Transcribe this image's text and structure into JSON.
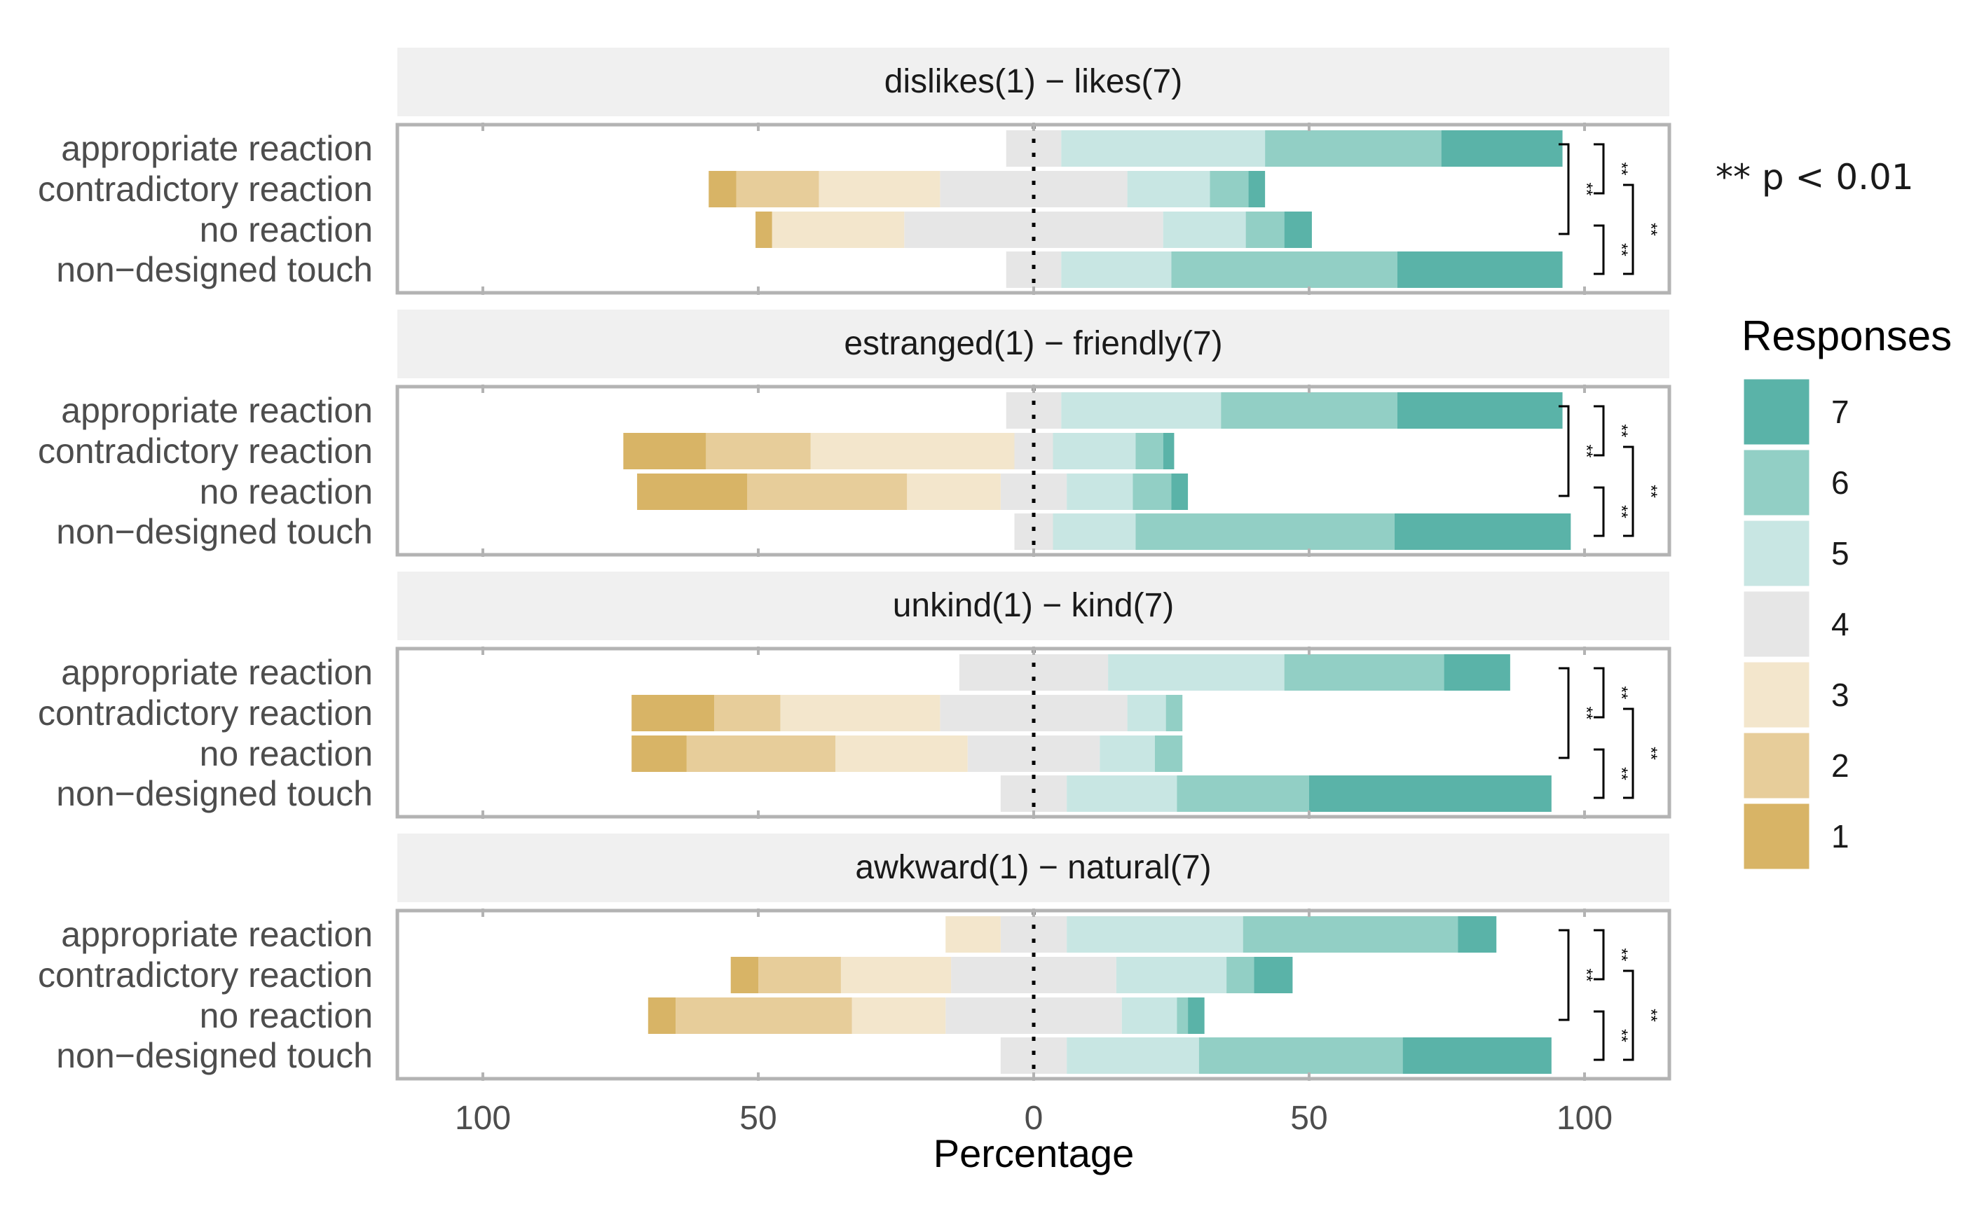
{
  "chart_data": {
    "type": "bar",
    "subtype": "diverging-stacked",
    "xlabel": "Percentage",
    "xlim": [
      -100,
      100
    ],
    "x_ticks": [
      -100,
      -50,
      0,
      50,
      100
    ],
    "x_tick_labels": [
      "100",
      "50",
      "0",
      "50",
      "100"
    ],
    "categories": [
      "appropriate reaction",
      "contradictory reaction",
      "no reaction",
      "non−designed touch"
    ],
    "legend": {
      "title": "Responses",
      "position": "right",
      "levels": [
        "7",
        "6",
        "5",
        "4",
        "3",
        "2",
        "1"
      ]
    },
    "colors": {
      "1": "#d8b466",
      "2": "#e7cd9a",
      "3": "#f3e6cc",
      "4": "#e6e6e6",
      "5": "#c8e6e3",
      "6": "#92cfc5",
      "7": "#5ab3a8"
    },
    "significance_note": "**  p < 0.01",
    "significance_marker": "**",
    "panels": [
      {
        "title": "dislikes(1) − likes(7)",
        "rows": [
          {
            "category": "appropriate reaction",
            "values": {
              "1": 0,
              "2": 0,
              "3": 0,
              "4": 10,
              "5": 37,
              "6": 32,
              "7": 22
            }
          },
          {
            "category": "contradictory reaction",
            "values": {
              "1": 5,
              "2": 15,
              "3": 22,
              "4": 34,
              "5": 15,
              "6": 7,
              "7": 3
            }
          },
          {
            "category": "no reaction",
            "values": {
              "1": 3,
              "2": 0,
              "3": 24,
              "4": 47,
              "5": 15,
              "6": 7,
              "7": 5
            }
          },
          {
            "category": "non−designed touch",
            "values": {
              "1": 0,
              "2": 0,
              "3": 0,
              "4": 10,
              "5": 20,
              "6": 41,
              "7": 30
            }
          }
        ],
        "comparisons": [
          {
            "pair": [
              "appropriate reaction",
              "contradictory reaction"
            ],
            "label": "**"
          },
          {
            "pair": [
              "appropriate reaction",
              "no reaction"
            ],
            "label": "**"
          },
          {
            "pair": [
              "contradictory reaction",
              "non−designed touch"
            ],
            "label": "**"
          },
          {
            "pair": [
              "no reaction",
              "non−designed touch"
            ],
            "label": "**"
          }
        ]
      },
      {
        "title": "estranged(1) − friendly(7)",
        "rows": [
          {
            "category": "appropriate reaction",
            "values": {
              "1": 0,
              "2": 0,
              "3": 0,
              "4": 10,
              "5": 29,
              "6": 32,
              "7": 30
            }
          },
          {
            "category": "contradictory reaction",
            "values": {
              "1": 15,
              "2": 19,
              "3": 37,
              "4": 7,
              "5": 15,
              "6": 5,
              "7": 2
            }
          },
          {
            "category": "no reaction",
            "values": {
              "1": 20,
              "2": 29,
              "3": 17,
              "4": 12,
              "5": 12,
              "6": 7,
              "7": 3
            }
          },
          {
            "category": "non−designed touch",
            "values": {
              "1": 0,
              "2": 0,
              "3": 0,
              "4": 7,
              "5": 15,
              "6": 47,
              "7": 32
            }
          }
        ],
        "comparisons": [
          {
            "pair": [
              "appropriate reaction",
              "contradictory reaction"
            ],
            "label": "**"
          },
          {
            "pair": [
              "appropriate reaction",
              "no reaction"
            ],
            "label": "**"
          },
          {
            "pair": [
              "contradictory reaction",
              "non−designed touch"
            ],
            "label": "**"
          },
          {
            "pair": [
              "no reaction",
              "non−designed touch"
            ],
            "label": "**"
          }
        ]
      },
      {
        "title": "unkind(1) − kind(7)",
        "rows": [
          {
            "category": "appropriate reaction",
            "values": {
              "1": 0,
              "2": 0,
              "3": 0,
              "4": 27,
              "5": 32,
              "6": 29,
              "7": 12
            }
          },
          {
            "category": "contradictory reaction",
            "values": {
              "1": 15,
              "2": 12,
              "3": 29,
              "4": 34,
              "5": 7,
              "6": 3,
              "7": 0
            }
          },
          {
            "category": "no reaction",
            "values": {
              "1": 10,
              "2": 27,
              "3": 24,
              "4": 24,
              "5": 10,
              "6": 5,
              "7": 0
            }
          },
          {
            "category": "non−designed touch",
            "values": {
              "1": 0,
              "2": 0,
              "3": 0,
              "4": 12,
              "5": 20,
              "6": 24,
              "7": 44
            }
          }
        ],
        "comparisons": [
          {
            "pair": [
              "appropriate reaction",
              "contradictory reaction"
            ],
            "label": "**"
          },
          {
            "pair": [
              "appropriate reaction",
              "no reaction"
            ],
            "label": "**"
          },
          {
            "pair": [
              "contradictory reaction",
              "non−designed touch"
            ],
            "label": "**"
          },
          {
            "pair": [
              "no reaction",
              "non−designed touch"
            ],
            "label": "**"
          }
        ]
      },
      {
        "title": "awkward(1) − natural(7)",
        "rows": [
          {
            "category": "appropriate reaction",
            "values": {
              "1": 0,
              "2": 0,
              "3": 10,
              "4": 12,
              "5": 32,
              "6": 39,
              "7": 7
            }
          },
          {
            "category": "contradictory reaction",
            "values": {
              "1": 5,
              "2": 15,
              "3": 20,
              "4": 30,
              "5": 20,
              "6": 5,
              "7": 7
            }
          },
          {
            "category": "no reaction",
            "values": {
              "1": 5,
              "2": 32,
              "3": 17,
              "4": 32,
              "5": 10,
              "6": 2,
              "7": 3
            }
          },
          {
            "category": "non−designed touch",
            "values": {
              "1": 0,
              "2": 0,
              "3": 0,
              "4": 12,
              "5": 24,
              "6": 37,
              "7": 27
            }
          }
        ],
        "comparisons": [
          {
            "pair": [
              "appropriate reaction",
              "contradictory reaction"
            ],
            "label": "**"
          },
          {
            "pair": [
              "appropriate reaction",
              "no reaction"
            ],
            "label": "**"
          },
          {
            "pair": [
              "contradictory reaction",
              "non−designed touch"
            ],
            "label": "**"
          },
          {
            "pair": [
              "no reaction",
              "non−designed touch"
            ],
            "label": "**"
          }
        ]
      }
    ]
  }
}
